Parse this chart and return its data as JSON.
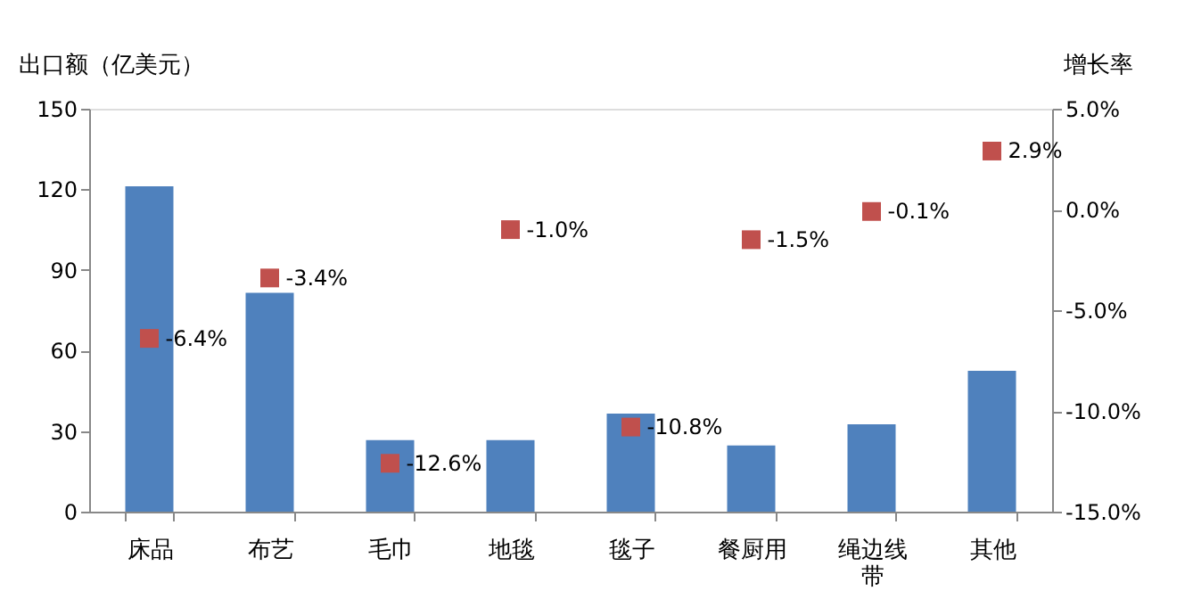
{
  "chart_data": {
    "type": "bar",
    "categories": [
      "床品",
      "布艺",
      "毛巾",
      "地毯",
      "毯子",
      "餐厨用",
      "绳边线带",
      "其他"
    ],
    "ylabel": "出口额（亿美元）",
    "y2label": "增长率",
    "ylim": [
      0,
      150
    ],
    "yticks": [
      0,
      30,
      60,
      90,
      120,
      150
    ],
    "y2lim": [
      -15,
      5
    ],
    "y2ticks": [
      {
        "value": -15,
        "label": "-15.0%"
      },
      {
        "value": -10,
        "label": "-10.0%"
      },
      {
        "value": -5,
        "label": "-5.0%"
      },
      {
        "value": 0,
        "label": "0.0%"
      },
      {
        "value": 5,
        "label": "5.0%"
      }
    ],
    "grid": false,
    "series": [
      {
        "color": "#4f81bd",
        "values": [
          121.1,
          81.5,
          26.6,
          26.6,
          36.5,
          24.6,
          32.5,
          52.4
        ]
      },
      {
        "type": "scatter",
        "axis": "y2",
        "marker": "square",
        "color": "#c0504d",
        "values": [
          -6.4,
          -3.4,
          -12.6,
          -1.0,
          -10.8,
          -1.5,
          -0.1,
          2.9
        ],
        "value_labels": [
          "-6.4%",
          "-3.4%",
          "-12.6%",
          "-1.0%",
          "-10.8%",
          "-1.5%",
          "-0.1%",
          "2.9%"
        ]
      }
    ]
  }
}
